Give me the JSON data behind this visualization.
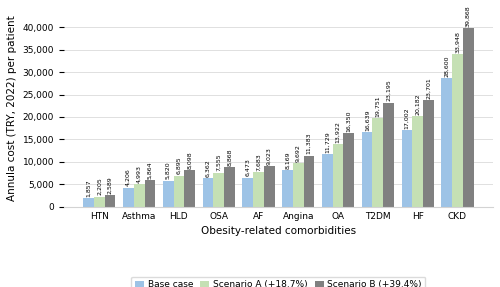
{
  "categories": [
    "HTN",
    "Asthma",
    "HLD",
    "OSA",
    "AF",
    "Angina",
    "OA",
    "T2DM",
    "HF",
    "CKD"
  ],
  "base_case": [
    1857,
    4206,
    5820,
    6362,
    6473,
    8169,
    11729,
    16639,
    17002,
    28600
  ],
  "scenario_a": [
    2205,
    4993,
    6895,
    7555,
    7683,
    9692,
    13922,
    19751,
    20182,
    33948
  ],
  "scenario_b": [
    2589,
    5864,
    8098,
    8868,
    9023,
    11383,
    16350,
    23195,
    23701,
    39868
  ],
  "base_labels": [
    "1,857",
    "4,206",
    "5,820",
    "6,362",
    "6,473",
    "8,169",
    "11,729",
    "16,639",
    "17,002",
    "28,600"
  ],
  "a_labels": [
    "2,205",
    "4,993",
    "6,895",
    "7,555",
    "7,683",
    "9,692",
    "13,922",
    "19,751",
    "20,182",
    "33,948"
  ],
  "b_labels": [
    "2,589",
    "5,864",
    "8,098",
    "8,868",
    "9,023",
    "11,383",
    "16,350",
    "23,195",
    "23,701",
    "39,868"
  ],
  "color_base": "#9DC3E6",
  "color_a": "#C5E0B4",
  "color_b": "#808080",
  "xlabel": "Obesity-related comorbidities",
  "ylabel": "Annula cost (TRY, 2022) per patient",
  "ylim": [
    0,
    44000
  ],
  "yticks": [
    0,
    5000,
    10000,
    15000,
    20000,
    25000,
    30000,
    35000,
    40000
  ],
  "legend_labels": [
    "Base case",
    "Scenario A (+18.7%)",
    "Scenario B (+39.4%)"
  ],
  "bar_width": 0.27,
  "label_fontsize": 4.5,
  "axis_fontsize": 7.5,
  "tick_fontsize": 6.5,
  "legend_fontsize": 6.5
}
